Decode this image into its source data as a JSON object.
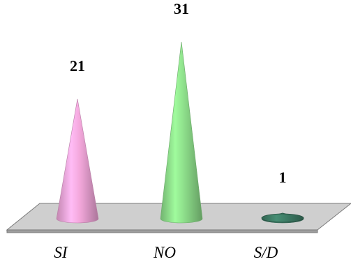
{
  "chart_data": {
    "type": "bar",
    "style": "3d-cone",
    "categories": [
      "SI",
      "NO",
      "S/D"
    ],
    "values": [
      21,
      31,
      1
    ],
    "colors": [
      "#f4a8dc",
      "#8fe08c",
      "#3f7f68"
    ],
    "data_labels": [
      "21",
      "31",
      "1"
    ],
    "title": "",
    "xlabel": "",
    "ylabel": "",
    "ylim": [
      0,
      31
    ],
    "grid": false,
    "legend": "none"
  }
}
